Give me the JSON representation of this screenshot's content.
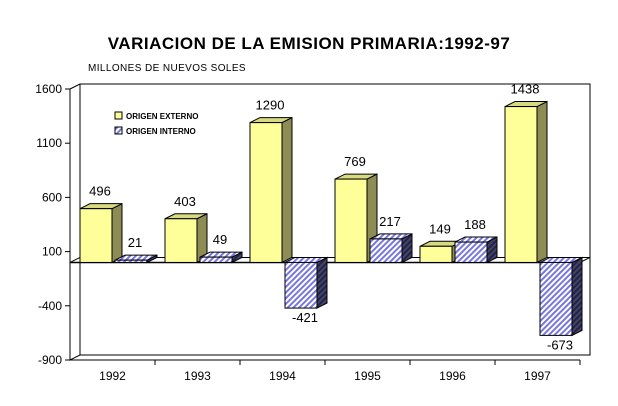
{
  "chart_data": {
    "type": "bar",
    "title": "VARIACION DE LA EMISION PRIMARIA:1992-97",
    "subtitle": "MILLONES DE NUEVOS SOLES",
    "categories": [
      "1992",
      "1993",
      "1994",
      "1995",
      "1996",
      "1997"
    ],
    "series": [
      {
        "name": "ORIGEN EXTERNO",
        "values": [
          496,
          403,
          1290,
          769,
          149,
          1438
        ],
        "color": "#ffff99",
        "pattern": "solid"
      },
      {
        "name": "ORIGEN INTERNO",
        "values": [
          21,
          49,
          -421,
          217,
          188,
          -673
        ],
        "color": "#9999ff",
        "pattern": "diagonal-hatch"
      }
    ],
    "y_ticks": [
      -900,
      -400,
      100,
      600,
      1100,
      1600
    ],
    "ylim": [
      -900,
      1600
    ],
    "legend_position": "top-left",
    "grid": false,
    "style": "3d-clustered-column"
  }
}
